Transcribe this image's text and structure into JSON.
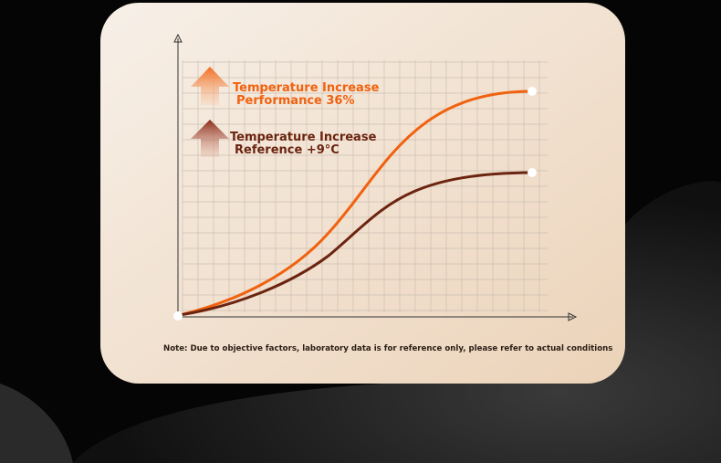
{
  "labels": [
    {
      "title": "Temperature Increase",
      "detail": "Performance 36%"
    },
    {
      "title": "Temperature Increase",
      "detail": "Reference +9°C"
    }
  ],
  "note": "Note: Due to objective factors, laboratory data is for reference only, please refer to actual conditions"
}
